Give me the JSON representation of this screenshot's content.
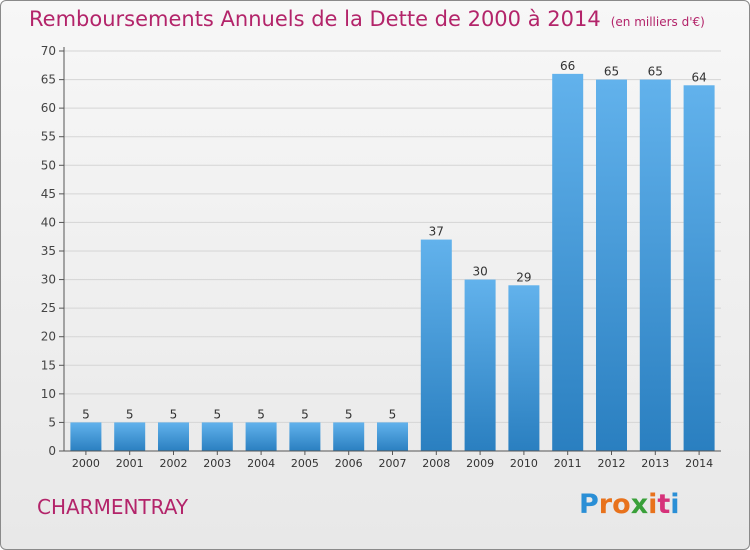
{
  "title": "Remboursements Annuels de la Dette de 2000 à 2014",
  "title_unit": "(en milliers d'€)",
  "commune": "CHARMENTRAY",
  "brand": {
    "letters": [
      "P",
      "r",
      "o",
      "x",
      "i",
      "t",
      "i"
    ],
    "colors": [
      "#2a8fd6",
      "#e8721c",
      "#e8721c",
      "#3aa03a",
      "#e8721c",
      "#d6327a",
      "#2a8fd6"
    ]
  },
  "colors": {
    "title": "#b3246a",
    "bar_light": "#62b2ec",
    "bar_dark": "#2a7fc0",
    "grid": "#d5d5d5"
  },
  "chart_data": {
    "type": "bar",
    "categories": [
      "2000",
      "2001",
      "2002",
      "2003",
      "2004",
      "2005",
      "2006",
      "2007",
      "2008",
      "2009",
      "2010",
      "2011",
      "2012",
      "2013",
      "2014"
    ],
    "values": [
      5,
      5,
      5,
      5,
      5,
      5,
      5,
      5,
      37,
      30,
      29,
      66,
      65,
      65,
      64
    ],
    "ylim": [
      0,
      70
    ],
    "yticks": [
      0,
      5,
      10,
      15,
      20,
      25,
      30,
      35,
      40,
      45,
      50,
      55,
      60,
      65,
      70
    ],
    "grid": true
  }
}
